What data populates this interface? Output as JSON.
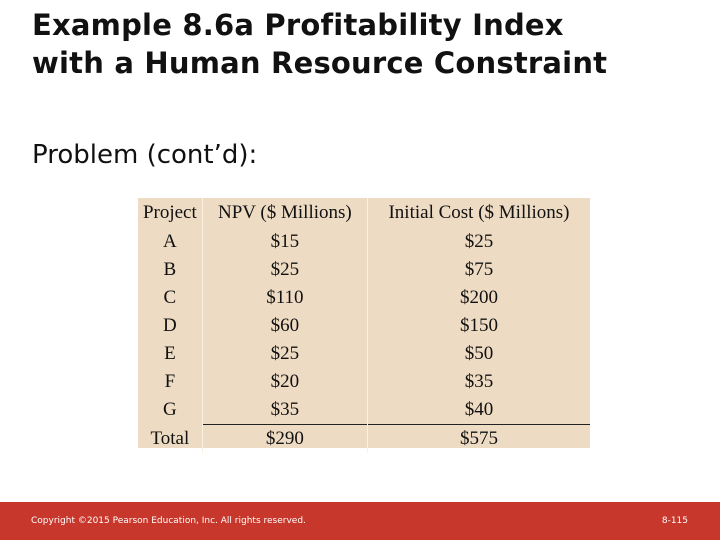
{
  "slide": {
    "title_line1": "Example 8.6a Profitability Index",
    "title_line2": "with a Human Resource Constraint",
    "subtitle": "Problem (cont’d):"
  },
  "table": {
    "headers": [
      "Project",
      "NPV ($ Millions)",
      "Initial Cost ($ Millions)"
    ],
    "rows": [
      [
        "A",
        "$15",
        "$25"
      ],
      [
        "B",
        "$25",
        "$75"
      ],
      [
        "C",
        "$110",
        "$200"
      ],
      [
        "D",
        "$60",
        "$150"
      ],
      [
        "E",
        "$25",
        "$50"
      ],
      [
        "F",
        "$20",
        "$35"
      ],
      [
        "G",
        "$35",
        "$40"
      ]
    ],
    "total": [
      "Total",
      "$290",
      "$575"
    ]
  },
  "footer": {
    "copyright": "Copyright ©2015 Pearson Education, Inc. All rights reserved.",
    "page_number": "8-115"
  },
  "colors": {
    "table_background": "#eedbc3",
    "footer_background": "#c8372b"
  }
}
